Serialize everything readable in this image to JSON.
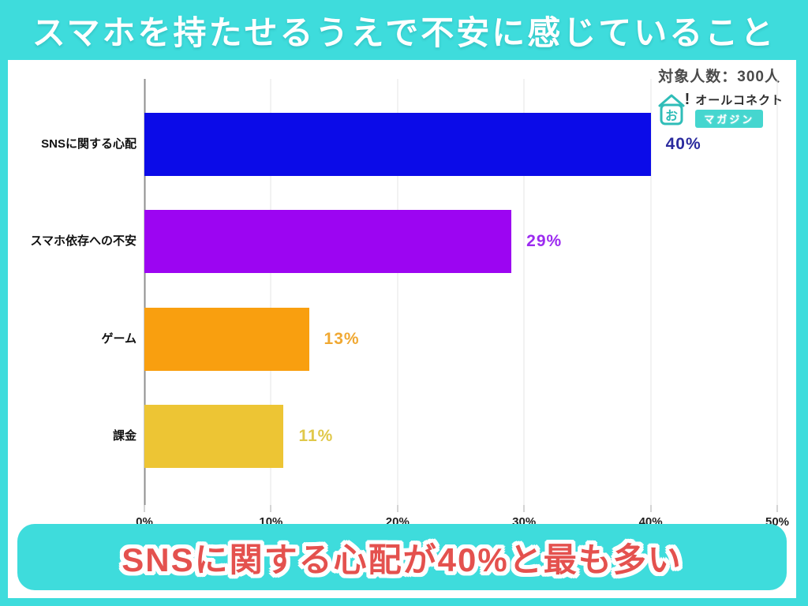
{
  "page": {
    "title": "スマホを持たせるうえで不安に感じていること",
    "sample_note": "対象人数：300人",
    "banner": "SNSに関する心配が40%と最も多い"
  },
  "logo": {
    "brand": "オールコネクト",
    "sub": "マガジン",
    "icon_glyph": "お",
    "exclamation": "!"
  },
  "colors": {
    "theme_cyan": "#3edcdc",
    "panel_white": "#ffffff",
    "banner_text_red": "#e4514e",
    "axis_line": "#8f8f8f",
    "gridline": "#e4e4e4"
  },
  "chart_data": {
    "type": "bar",
    "orientation": "horizontal",
    "title": "スマホを持たせるうえで不安に感じていること",
    "subtitle": "対象人数：300人",
    "categories": [
      "SNSに関する心配",
      "スマホ依存への不安",
      "ゲーム",
      "課金"
    ],
    "values": [
      40,
      29,
      13,
      11
    ],
    "value_labels": [
      "40%",
      "29%",
      "13%",
      "11%"
    ],
    "bar_colors": [
      "#0b0be8",
      "#9c05f2",
      "#f99f0f",
      "#edc534"
    ],
    "value_label_colors": [
      "#2b2b9e",
      "#9c2bf0",
      "#f0a832",
      "#e0c84a"
    ],
    "x_ticks": [
      "0%",
      "10%",
      "20%",
      "30%",
      "40%",
      "50%"
    ],
    "x_tick_values": [
      0,
      10,
      20,
      30,
      40,
      50
    ],
    "xlim": [
      0,
      50
    ],
    "xlabel": "",
    "ylabel": "",
    "grid": true,
    "annotation": "SNSに関する心配が40%と最も多い"
  }
}
